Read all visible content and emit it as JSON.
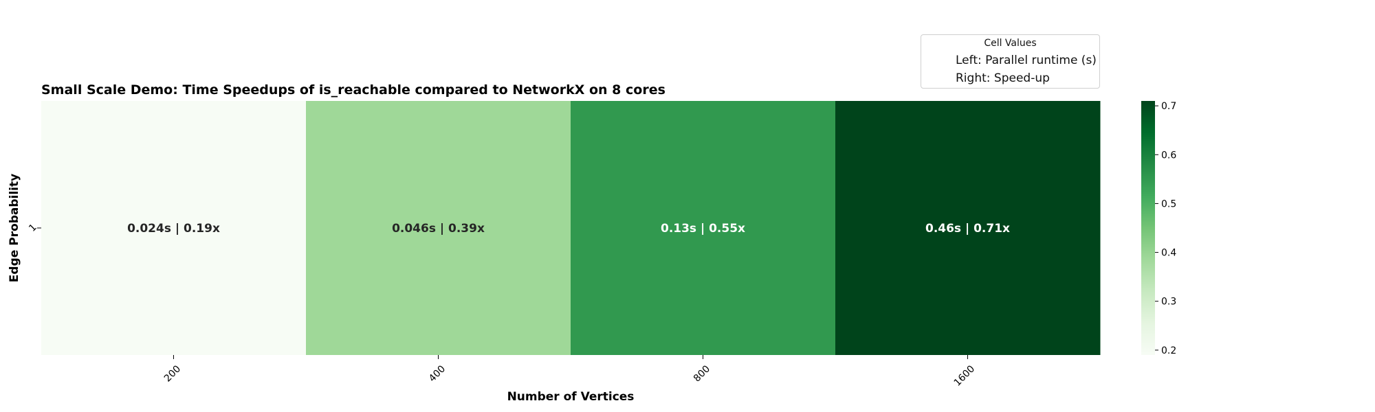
{
  "chart_data": {
    "type": "heatmap",
    "title": "Small Scale Demo: Time Speedups of is_reachable compared to NetworkX on 8 cores",
    "xlabel": "Number of Vertices",
    "ylabel": "Edge Probability",
    "x_categories": [
      "200",
      "400",
      "800",
      "1600"
    ],
    "y_categories": [
      "1"
    ],
    "values": [
      [
        0.19,
        0.39,
        0.55,
        0.71
      ]
    ],
    "runtimes_s": [
      [
        0.024,
        0.046,
        0.13,
        0.46
      ]
    ],
    "cell_labels": [
      [
        "0.024s | 0.19x",
        "0.046s | 0.39x",
        "0.13s | 0.55x",
        "0.46s | 0.71x"
      ]
    ],
    "colormap": "Greens",
    "colorbar": {
      "range": [
        0.19,
        0.71
      ],
      "ticks": [
        "0.2",
        "0.3",
        "0.4",
        "0.5",
        "0.6",
        "0.7"
      ]
    },
    "legend": {
      "title": "Cell Values",
      "entries": [
        "Left: Parallel runtime (s)",
        "Right: Speed-up"
      ],
      "placement": "top-right"
    }
  },
  "colors": {
    "cells": [
      "#f7fcf5",
      "#9fd898",
      "#31994f",
      "#00441b"
    ],
    "text_dark": "#262626",
    "text_light": "#ffffff",
    "gradient": [
      "#f7fcf5",
      "#e5f5e0",
      "#c7e9c0",
      "#a1d99b",
      "#74c476",
      "#41ab5d",
      "#238b45",
      "#006d2c",
      "#00441b"
    ]
  }
}
